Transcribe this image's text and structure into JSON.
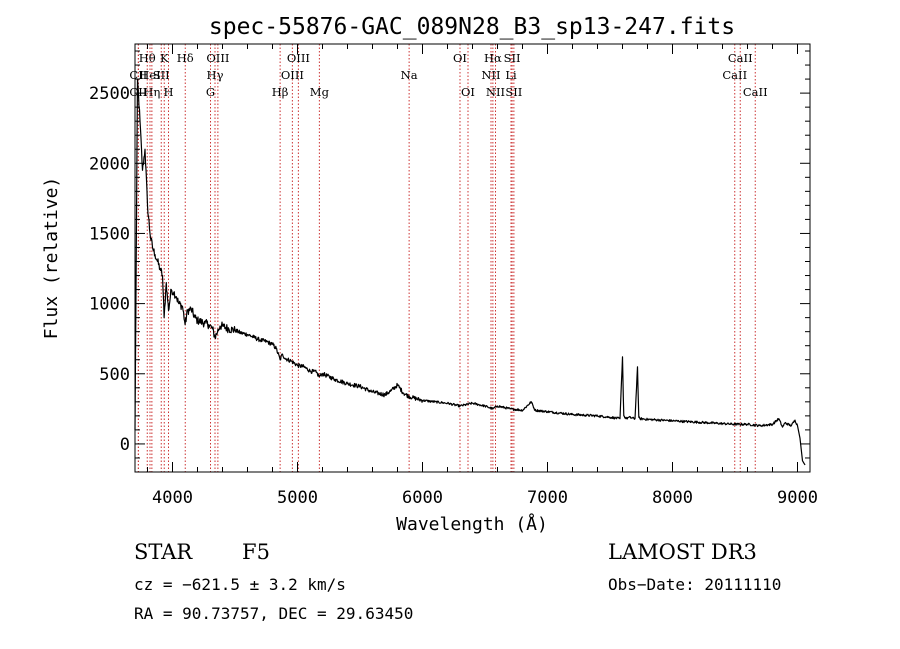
{
  "chart_data": {
    "type": "line",
    "title": "spec-55876-GAC_089N28_B3_sp13-247.fits",
    "xlabel": "Wavelength (Å)",
    "ylabel": "Flux (relative)",
    "xlim": [
      3700,
      9100
    ],
    "ylim": [
      -200,
      2850
    ],
    "xticks": [
      4000,
      5000,
      6000,
      7000,
      8000,
      9000
    ],
    "yticks": [
      0,
      500,
      1000,
      1500,
      2000,
      2500
    ],
    "series": [
      {
        "name": "spectrum",
        "x": [
          3700,
          3720,
          3740,
          3760,
          3780,
          3800,
          3820,
          3840,
          3860,
          3880,
          3900,
          3920,
          3933,
          3950,
          3968,
          3990,
          4010,
          4030,
          4050,
          4080,
          4101,
          4120,
          4150,
          4180,
          4200,
          4230,
          4260,
          4290,
          4320,
          4340,
          4360,
          4380,
          4400,
          4450,
          4500,
          4550,
          4600,
          4650,
          4700,
          4750,
          4800,
          4830,
          4861,
          4880,
          4900,
          4950,
          5000,
          5050,
          5100,
          5150,
          5175,
          5200,
          5300,
          5400,
          5500,
          5600,
          5700,
          5750,
          5800,
          5850,
          5890,
          5920,
          6000,
          6100,
          6200,
          6300,
          6400,
          6500,
          6563,
          6600,
          6700,
          6800,
          6870,
          6900,
          7000,
          7100,
          7200,
          7300,
          7400,
          7500,
          7580,
          7600,
          7610,
          7630,
          7650,
          7700,
          7720,
          7730,
          7740,
          7800,
          7900,
          8000,
          8100,
          8200,
          8300,
          8400,
          8500,
          8600,
          8700,
          8800,
          8850,
          8880,
          8900,
          8950,
          8980,
          9000,
          9020,
          9040,
          9060
        ],
        "y": [
          100,
          2600,
          2300,
          1950,
          2100,
          1700,
          1500,
          1400,
          1350,
          1300,
          1250,
          1200,
          900,
          1150,
          950,
          1100,
          1080,
          1050,
          1000,
          980,
          850,
          950,
          960,
          900,
          880,
          870,
          860,
          850,
          820,
          760,
          800,
          840,
          840,
          820,
          810,
          790,
          780,
          760,
          740,
          730,
          710,
          680,
          600,
          640,
          610,
          590,
          560,
          550,
          520,
          510,
          480,
          500,
          460,
          430,
          410,
          370,
          350,
          380,
          420,
          360,
          340,
          330,
          310,
          300,
          290,
          270,
          290,
          270,
          250,
          270,
          250,
          240,
          300,
          240,
          230,
          220,
          210,
          205,
          200,
          190,
          180,
          620,
          200,
          180,
          190,
          180,
          550,
          190,
          180,
          175,
          170,
          165,
          160,
          155,
          150,
          145,
          140,
          140,
          130,
          140,
          180,
          120,
          150,
          130,
          170,
          130,
          40,
          -120,
          -150
        ],
        "color": "#000000"
      }
    ],
    "line_markers": [
      {
        "label": "CII",
        "x": 3727,
        "row": 2
      },
      {
        "label": "CII",
        "x": 3727,
        "row": 3
      },
      {
        "label": "Hθ",
        "x": 3798,
        "row": 1
      },
      {
        "label": "HeI",
        "x": 3820,
        "row": 2
      },
      {
        "label": "Hη",
        "x": 3835,
        "row": 3
      },
      {
        "label": "K",
        "x": 3934,
        "row": 1
      },
      {
        "label": "SII",
        "x": 3910,
        "row": 2
      },
      {
        "label": "H",
        "x": 3968,
        "row": 3
      },
      {
        "label": "Hδ",
        "x": 4102,
        "row": 1
      },
      {
        "label": "OIII",
        "x": 4363,
        "row": 1
      },
      {
        "label": "Hγ",
        "x": 4340,
        "row": 2
      },
      {
        "label": "G",
        "x": 4304,
        "row": 3
      },
      {
        "label": "Hβ",
        "x": 4861,
        "row": 3
      },
      {
        "label": "OIII",
        "x": 5007,
        "row": 1
      },
      {
        "label": "OIII",
        "x": 4959,
        "row": 2
      },
      {
        "label": "Mg",
        "x": 5175,
        "row": 3
      },
      {
        "label": "Na",
        "x": 5893,
        "row": 2
      },
      {
        "label": "OI",
        "x": 6300,
        "row": 1
      },
      {
        "label": "OI",
        "x": 6364,
        "row": 3
      },
      {
        "label": "Hα",
        "x": 6563,
        "row": 1
      },
      {
        "label": "NII",
        "x": 6548,
        "row": 2
      },
      {
        "label": "NII",
        "x": 6584,
        "row": 3
      },
      {
        "label": "SII",
        "x": 6717,
        "row": 1
      },
      {
        "label": "Li",
        "x": 6708,
        "row": 2
      },
      {
        "label": "SII",
        "x": 6731,
        "row": 3
      },
      {
        "label": "CaII",
        "x": 8542,
        "row": 1
      },
      {
        "label": "CaII",
        "x": 8498,
        "row": 2
      },
      {
        "label": "CaII",
        "x": 8662,
        "row": 3
      }
    ],
    "grid": false,
    "legend": "none"
  },
  "info": {
    "object_type": "STAR",
    "subclass": "F5",
    "survey": "LAMOST DR3",
    "cz": "cz = −621.5 ± 3.2 km/s",
    "obs_date": "Obs−Date: 20111110",
    "coords": "RA =  90.73757, DEC =  29.63450"
  },
  "colors": {
    "axes": "#000000",
    "marker_lines": "#cc3333",
    "spectrum": "#000000"
  }
}
